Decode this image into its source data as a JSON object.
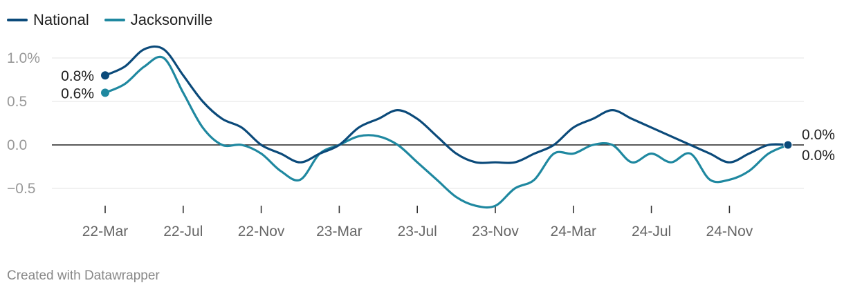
{
  "legend": [
    {
      "name": "National",
      "color": "#0b4a7a"
    },
    {
      "name": "Jacksonville",
      "color": "#1f88a0"
    }
  ],
  "credit": "Created with Datawrapper",
  "chart_data": {
    "type": "line",
    "title": "",
    "xlabel": "",
    "ylabel": "",
    "ylim": [
      -0.7,
      1.1
    ],
    "y_ticks": [
      {
        "value": 1.0,
        "label": "1.0%"
      },
      {
        "value": 0.5,
        "label": "0.5"
      },
      {
        "value": 0.0,
        "label": "0.0"
      },
      {
        "value": -0.5,
        "label": "−0.5"
      }
    ],
    "x_ticks": [
      {
        "index": 0,
        "label": "22-Mar"
      },
      {
        "index": 4,
        "label": "22-Jul"
      },
      {
        "index": 8,
        "label": "22-Nov"
      },
      {
        "index": 12,
        "label": "23-Mar"
      },
      {
        "index": 16,
        "label": "23-Jul"
      },
      {
        "index": 20,
        "label": "23-Nov"
      },
      {
        "index": 24,
        "label": "24-Mar"
      },
      {
        "index": 28,
        "label": "24-Jul"
      },
      {
        "index": 32,
        "label": "24-Nov"
      }
    ],
    "x": [
      "22-Mar",
      "22-Apr",
      "22-May",
      "22-Jun",
      "22-Jul",
      "22-Aug",
      "22-Sep",
      "22-Oct",
      "22-Nov",
      "22-Dec",
      "23-Jan",
      "23-Feb",
      "23-Mar",
      "23-Apr",
      "23-May",
      "23-Jun",
      "23-Jul",
      "23-Aug",
      "23-Sep",
      "23-Oct",
      "23-Nov",
      "23-Dec",
      "24-Jan",
      "24-Feb",
      "24-Mar",
      "24-Apr",
      "24-May",
      "24-Jun",
      "24-Jul",
      "24-Aug",
      "24-Sep",
      "24-Oct",
      "24-Nov",
      "24-Dec",
      "25-Jan",
      "25-Feb"
    ],
    "series": [
      {
        "name": "National",
        "color": "#0b4a7a",
        "start_label": "0.8%",
        "end_label": "0.0%",
        "values": [
          0.8,
          0.9,
          1.1,
          1.1,
          0.8,
          0.5,
          0.3,
          0.2,
          0.0,
          -0.1,
          -0.2,
          -0.1,
          0.0,
          0.2,
          0.3,
          0.4,
          0.3,
          0.1,
          -0.1,
          -0.2,
          -0.2,
          -0.2,
          -0.1,
          0.0,
          0.2,
          0.3,
          0.4,
          0.3,
          0.2,
          0.1,
          0.0,
          -0.1,
          -0.2,
          -0.1,
          0.0,
          0.0
        ]
      },
      {
        "name": "Jacksonville",
        "color": "#1f88a0",
        "start_label": "0.6%",
        "end_label": "0.0%",
        "values": [
          0.6,
          0.7,
          0.9,
          1.0,
          0.6,
          0.2,
          0.0,
          0.0,
          -0.1,
          -0.3,
          -0.4,
          -0.1,
          0.0,
          0.1,
          0.1,
          0.0,
          -0.2,
          -0.4,
          -0.6,
          -0.7,
          -0.7,
          -0.5,
          -0.4,
          -0.1,
          -0.1,
          0.0,
          0.0,
          -0.2,
          -0.1,
          -0.2,
          -0.1,
          -0.4,
          -0.4,
          -0.3,
          -0.1,
          0.0
        ]
      }
    ]
  }
}
